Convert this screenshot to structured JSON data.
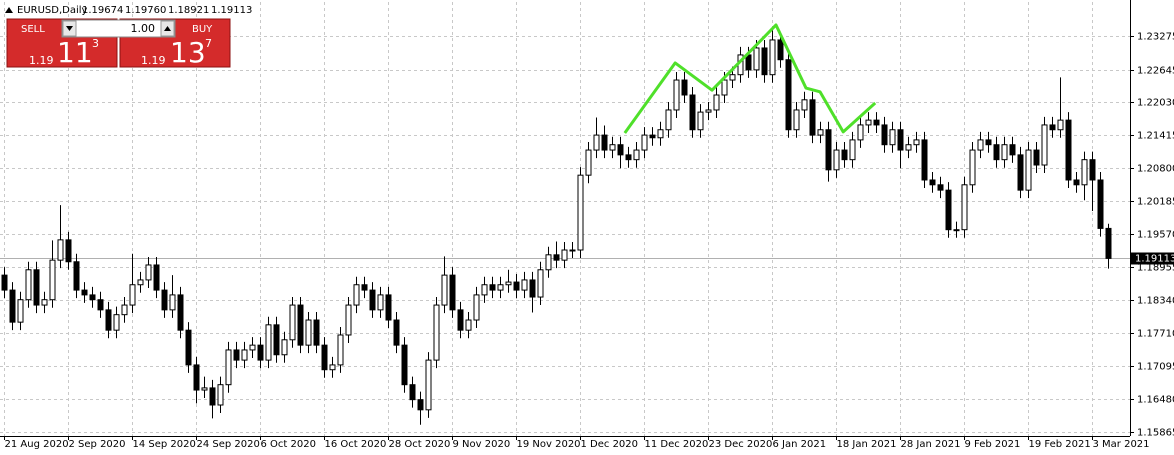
{
  "chart_data": {
    "type": "candlestick",
    "symbol": "EURUSD,Daily",
    "header_values": [
      "1.19674",
      "1.19760",
      "1.18921",
      "1.19113"
    ],
    "categories": [
      "21 Aug 2020",
      null,
      null,
      null,
      null,
      null,
      null,
      null,
      "2 Sep 2020",
      null,
      null,
      null,
      null,
      null,
      null,
      null,
      "14 Sep 2020",
      null,
      null,
      null,
      null,
      null,
      null,
      null,
      "24 Sep 2020",
      null,
      null,
      null,
      null,
      null,
      null,
      null,
      "6 Oct 2020",
      null,
      null,
      null,
      null,
      null,
      null,
      null,
      "16 Oct 2020",
      null,
      null,
      null,
      null,
      null,
      null,
      null,
      "28 Oct 2020",
      null,
      null,
      null,
      null,
      null,
      null,
      null,
      "9 Nov 2020",
      null,
      null,
      null,
      null,
      null,
      null,
      null,
      "19 Nov 2020",
      null,
      null,
      null,
      null,
      null,
      null,
      null,
      "1 Dec 2020",
      null,
      null,
      null,
      null,
      null,
      null,
      null,
      "11 Dec 2020",
      null,
      null,
      null,
      null,
      null,
      null,
      null,
      "23 Dec 2020",
      null,
      null,
      null,
      null,
      null,
      null,
      null,
      "6 Jan 2021",
      null,
      null,
      null,
      null,
      null,
      null,
      null,
      "18 Jan 2021",
      null,
      null,
      null,
      null,
      null,
      null,
      null,
      "28 Jan 2021",
      null,
      null,
      null,
      null,
      null,
      null,
      null,
      "9 Feb 2021",
      null,
      null,
      null,
      null,
      null,
      null,
      null,
      "19 Feb 2021",
      null,
      null,
      null,
      null,
      null,
      null,
      null,
      "3 Mar 2021",
      null,
      null
    ],
    "open": [
      1.188,
      1.1852,
      1.1792,
      1.1834,
      1.189,
      1.1824,
      1.1834,
      1.1908,
      1.1946,
      1.1905,
      1.1852,
      1.1843,
      1.1834,
      1.1815,
      1.1777,
      1.1806,
      1.1824,
      1.1862,
      1.1871,
      1.1899,
      1.1852,
      1.1815,
      1.1843,
      1.1777,
      1.1712,
      1.1665,
      1.1669,
      1.1637,
      1.1675,
      1.174,
      1.1721,
      1.174,
      1.1749,
      1.1721,
      1.1787,
      1.1731,
      1.1759,
      1.1824,
      1.1749,
      1.1796,
      1.1749,
      1.1703,
      1.1712,
      1.1768,
      1.1824,
      1.1862,
      1.1852,
      1.1815,
      1.1843,
      1.1796,
      1.1749,
      1.1675,
      1.1647,
      1.1628,
      1.1721,
      1.1824,
      1.188,
      1.1815,
      1.1777,
      1.1796,
      1.1843,
      1.1862,
      1.1852,
      1.1862,
      1.1867,
      1.1852,
      1.1871,
      1.1839,
      1.189,
      1.1918,
      1.1908,
      1.1927,
      1.1927,
      1.2067,
      1.2114,
      1.2142,
      1.2114,
      1.2124,
      1.2105,
      1.2096,
      1.2114,
      1.2142,
      1.2137,
      1.2152,
      1.2189,
      1.2245,
      1.2217,
      1.2152,
      1.2185,
      1.2189,
      1.2217,
      1.2245,
      1.2255,
      1.2292,
      1.2264,
      1.2305,
      1.2255,
      1.232,
      1.2283,
      1.2152,
      1.2189,
      1.2208,
      1.2142,
      1.2152,
      1.2077,
      1.2114,
      1.2096,
      1.2133,
      1.2161,
      1.217,
      1.2161,
      1.2124,
      1.2152,
      1.2114,
      1.2124,
      1.2133,
      1.2058,
      1.2049,
      1.2039,
      1.1965,
      1.1965,
      1.2049,
      1.2114,
      1.2133,
      1.2124,
      1.2096,
      1.2124,
      1.2105,
      1.2039,
      1.2114,
      1.2086,
      1.2161,
      1.2152,
      1.217,
      1.2058,
      1.2049,
      1.2096,
      1.2058,
      1.19674
    ],
    "high": [
      1.1895,
      1.1867,
      1.1849,
      1.1905,
      1.1905,
      1.1849,
      1.1945,
      1.2011,
      1.1961,
      1.192,
      1.1867,
      1.1858,
      1.1849,
      1.183,
      1.1821,
      1.1839,
      1.192,
      1.1886,
      1.1914,
      1.1914,
      1.1867,
      1.188,
      1.1858,
      1.1792,
      1.1727,
      1.169,
      1.1684,
      1.169,
      1.1755,
      1.1755,
      1.1755,
      1.1764,
      1.1764,
      1.1802,
      1.1802,
      1.1774,
      1.1839,
      1.1839,
      1.1811,
      1.1811,
      1.1764,
      1.1727,
      1.1783,
      1.1839,
      1.1877,
      1.1877,
      1.1867,
      1.1858,
      1.1858,
      1.1811,
      1.1764,
      1.169,
      1.1662,
      1.1736,
      1.1839,
      1.1915,
      1.1895,
      1.183,
      1.1811,
      1.1858,
      1.1877,
      1.1877,
      1.1877,
      1.189,
      1.1882,
      1.1886,
      1.1886,
      1.1905,
      1.1933,
      1.1943,
      1.1942,
      1.1942,
      1.2082,
      1.2129,
      1.2175,
      1.216,
      1.2139,
      1.2139,
      1.212,
      1.2129,
      1.2157,
      1.2157,
      1.2167,
      1.2204,
      1.226,
      1.226,
      1.2232,
      1.22,
      1.2204,
      1.2232,
      1.226,
      1.227,
      1.2307,
      1.2307,
      1.232,
      1.232,
      1.2345,
      1.2335,
      1.2298,
      1.2204,
      1.2223,
      1.2223,
      1.2167,
      1.2167,
      1.2129,
      1.2129,
      1.2148,
      1.2176,
      1.2185,
      1.2185,
      1.2176,
      1.2167,
      1.2167,
      1.2139,
      1.2148,
      1.2148,
      1.2073,
      1.2064,
      1.2054,
      1.198,
      1.2064,
      1.2129,
      1.2148,
      1.2148,
      1.2139,
      1.2139,
      1.2139,
      1.212,
      1.2129,
      1.2129,
      1.2176,
      1.2176,
      1.225,
      1.2185,
      1.2073,
      1.2111,
      1.2111,
      1.2073,
      1.1976
    ],
    "low": [
      1.1837,
      1.1777,
      1.1777,
      1.1819,
      1.1809,
      1.1809,
      1.1819,
      1.1893,
      1.189,
      1.1837,
      1.1828,
      1.1819,
      1.18,
      1.1762,
      1.1762,
      1.1791,
      1.1809,
      1.1847,
      1.1856,
      1.1837,
      1.18,
      1.18,
      1.1762,
      1.1697,
      1.164,
      1.165,
      1.1612,
      1.1622,
      1.166,
      1.1706,
      1.1706,
      1.1725,
      1.1706,
      1.1706,
      1.1716,
      1.1716,
      1.1744,
      1.1734,
      1.1734,
      1.1734,
      1.1688,
      1.1688,
      1.1697,
      1.1753,
      1.1809,
      1.1837,
      1.18,
      1.18,
      1.1781,
      1.1734,
      1.166,
      1.1632,
      1.16,
      1.1613,
      1.1706,
      1.1809,
      1.18,
      1.1762,
      1.1762,
      1.1781,
      1.1828,
      1.1837,
      1.1837,
      1.1847,
      1.1837,
      1.1837,
      1.181,
      1.1824,
      1.1875,
      1.1893,
      1.1893,
      1.1912,
      1.1912,
      1.2052,
      1.2099,
      1.2099,
      1.2099,
      1.208,
      1.2081,
      1.2081,
      1.2099,
      1.2122,
      1.2122,
      1.2137,
      1.2174,
      1.2202,
      1.2137,
      1.2137,
      1.217,
      1.2174,
      1.2202,
      1.223,
      1.224,
      1.2249,
      1.2249,
      1.224,
      1.224,
      1.2268,
      1.2137,
      1.2137,
      1.2174,
      1.2127,
      1.2127,
      1.2055,
      1.2062,
      1.2081,
      1.2081,
      1.2118,
      1.2146,
      1.2146,
      1.2109,
      1.2109,
      1.208,
      1.2099,
      1.2109,
      1.2043,
      1.2034,
      1.2024,
      1.195,
      1.195,
      1.195,
      1.2034,
      1.2099,
      1.2109,
      1.2081,
      1.2081,
      1.209,
      1.2024,
      1.2024,
      1.2071,
      1.2071,
      1.2137,
      1.2137,
      1.2043,
      1.2034,
      1.202,
      1.2,
      1.1952,
      1.18921
    ],
    "close": [
      1.1852,
      1.1792,
      1.1834,
      1.189,
      1.1824,
      1.1834,
      1.1908,
      1.1946,
      1.1905,
      1.1852,
      1.1843,
      1.1834,
      1.1815,
      1.1777,
      1.1806,
      1.1824,
      1.1862,
      1.1871,
      1.1899,
      1.1852,
      1.1815,
      1.1843,
      1.1777,
      1.1712,
      1.1665,
      1.1669,
      1.1637,
      1.1675,
      1.174,
      1.1721,
      1.174,
      1.1749,
      1.1721,
      1.1787,
      1.1731,
      1.1759,
      1.1824,
      1.1749,
      1.1796,
      1.1749,
      1.1703,
      1.1712,
      1.1768,
      1.1824,
      1.1862,
      1.1852,
      1.1815,
      1.1843,
      1.1796,
      1.1749,
      1.1675,
      1.1647,
      1.1628,
      1.1721,
      1.1824,
      1.188,
      1.1815,
      1.1777,
      1.1796,
      1.1843,
      1.1862,
      1.1852,
      1.1862,
      1.1867,
      1.1852,
      1.1871,
      1.1839,
      1.189,
      1.1918,
      1.1908,
      1.1927,
      1.1927,
      1.2067,
      1.2114,
      1.2142,
      1.2114,
      1.2124,
      1.2105,
      1.2096,
      1.2114,
      1.2142,
      1.2137,
      1.2152,
      1.2189,
      1.2245,
      1.2217,
      1.2152,
      1.2185,
      1.2189,
      1.2217,
      1.2245,
      1.2255,
      1.2292,
      1.2264,
      1.2305,
      1.2255,
      1.232,
      1.2283,
      1.2152,
      1.2189,
      1.2208,
      1.2142,
      1.2152,
      1.2077,
      1.2114,
      1.2096,
      1.2133,
      1.2161,
      1.217,
      1.2161,
      1.2124,
      1.2152,
      1.2114,
      1.2124,
      1.2133,
      1.2058,
      1.2049,
      1.2039,
      1.1965,
      1.1965,
      1.2049,
      1.2114,
      1.2133,
      1.2124,
      1.2096,
      1.2124,
      1.2105,
      1.2039,
      1.2114,
      1.2086,
      1.2161,
      1.2152,
      1.217,
      1.2058,
      1.2049,
      1.2096,
      1.2058,
      1.19674,
      1.19113
    ],
    "up_color": "#ffffff",
    "down_color": "#000000",
    "ylim": [
      1.1579,
      1.2391
    ],
    "yticks": [
      1.23275,
      1.22645,
      {
        "value": 1.2203,
        "label": "1.22030"
      },
      1.21415,
      {
        "value": 1.208,
        "label": "1.20800"
      },
      1.20185,
      {
        "value": 1.1957,
        "label": "1.19570"
      },
      1.18955,
      {
        "value": 1.1834,
        "label": "1.18340"
      },
      {
        "value": 1.1771,
        "label": "1.17710"
      },
      1.17095,
      {
        "value": 1.1648,
        "label": "1.16480"
      },
      1.15865
    ],
    "grid": true,
    "trendline": {
      "color": "#4fe02a",
      "x": [
        77.6,
        83.9,
        88.5,
        96.5,
        100.25,
        102,
        104.9,
        108.9
      ],
      "y": [
        1.2146,
        1.2277,
        1.2226,
        1.2348,
        1.223,
        1.2223,
        1.2148,
        1.2202
      ]
    }
  },
  "trade_panel": {
    "sell_label": "SELL",
    "buy_label": "BUY",
    "lot": "1.00",
    "sell_prefix": "1.19",
    "sell_big": "11",
    "sell_small": "3",
    "buy_prefix": "1.19",
    "buy_big": "13",
    "buy_small": "7"
  }
}
